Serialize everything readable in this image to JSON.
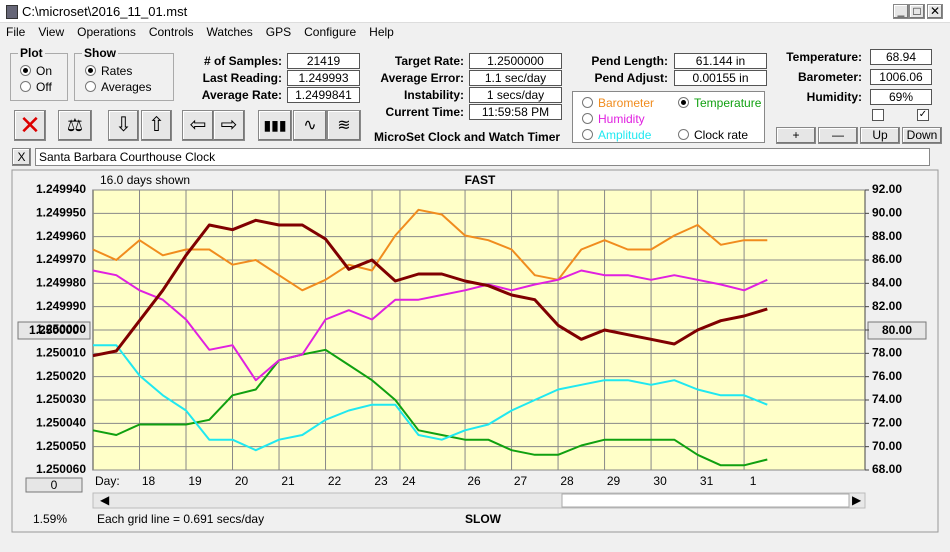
{
  "window": {
    "title": "C:\\microset\\2016_11_01.mst"
  },
  "menu": [
    "File",
    "View",
    "Operations",
    "Controls",
    "Watches",
    "GPS",
    "Configure",
    "Help"
  ],
  "plot_group": {
    "title": "Plot",
    "options": [
      "On",
      "Off"
    ]
  },
  "show_group": {
    "title": "Show",
    "options": [
      "Rates",
      "Averages"
    ]
  },
  "stats": [
    {
      "label": "# of Samples:",
      "value": "21419"
    },
    {
      "label": "Last Reading:",
      "value": "1.249993"
    },
    {
      "label": "Average Rate:",
      "value": "1.2499841"
    }
  ],
  "timing": [
    {
      "label": "Target Rate:",
      "value": "1.2500000"
    },
    {
      "label": "Average Error:",
      "value": "1.1 sec/day"
    },
    {
      "label": "Instability:",
      "value": "1 secs/day"
    },
    {
      "label": "Current Time:",
      "value": "11:59:58 PM"
    }
  ],
  "app_name": "MicroSet Clock and Watch Timer",
  "pendulum": [
    {
      "label": "Pend Length:",
      "value": "61.144 in"
    },
    {
      "label": "Pend Adjust:",
      "value": "0.00155 in"
    }
  ],
  "sensors": [
    {
      "label": "Temperature:",
      "value": "68.94"
    },
    {
      "label": "Barometer:",
      "value": "1006.06"
    },
    {
      "label": "Humidity:",
      "value": "69%"
    }
  ],
  "scale_buttons": [
    "+",
    "—",
    "Up",
    "Down"
  ],
  "clock_close": "X",
  "clock_name": "Santa Barbara Courthouse Clock",
  "chart": {
    "type": "line",
    "days_shown": "16.0 days shown",
    "top_label": "FAST",
    "bottom_label": "SLOW",
    "x_axis_label": "Day:",
    "grid_note": "Each grid line = 0.691 secs/day",
    "percent": "1.59%",
    "left_button": "1.250000",
    "right_button": "80.00",
    "scroll_button": "0",
    "xlim": [
      0,
      16.6
    ],
    "xticks": [
      {
        "value": 1,
        "label": "18"
      },
      {
        "value": 2,
        "label": "19"
      },
      {
        "value": 3,
        "label": "20"
      },
      {
        "value": 4,
        "label": "21"
      },
      {
        "value": 5,
        "label": "22"
      },
      {
        "value": 6,
        "label": "23"
      },
      {
        "value": 6.6,
        "label": "24"
      },
      {
        "value": 8,
        "label": "26"
      },
      {
        "value": 9,
        "label": "27"
      },
      {
        "value": 10,
        "label": "28"
      },
      {
        "value": 11,
        "label": "29"
      },
      {
        "value": 12,
        "label": "30"
      },
      {
        "value": 13,
        "label": "31"
      },
      {
        "value": 14,
        "label": "1"
      }
    ],
    "ylim": [
      1.24994,
      1.25006
    ],
    "yticks": [
      {
        "value": 1.24994,
        "label": "1.249940"
      },
      {
        "value": 1.24995,
        "label": "1.249950"
      },
      {
        "value": 1.24996,
        "label": "1.249960"
      },
      {
        "value": 1.24997,
        "label": "1.249970"
      },
      {
        "value": 1.24998,
        "label": "1.249980"
      },
      {
        "value": 1.24999,
        "label": "1.249990"
      },
      {
        "value": 1.25,
        "label": "1.250000"
      },
      {
        "value": 1.25001,
        "label": "1.250010"
      },
      {
        "value": 1.25002,
        "label": "1.250020"
      },
      {
        "value": 1.25003,
        "label": "1.250030"
      },
      {
        "value": 1.25004,
        "label": "1.250040"
      },
      {
        "value": 1.25005,
        "label": "1.250050"
      },
      {
        "value": 1.25006,
        "label": "1.250060"
      }
    ],
    "y2lim": [
      92,
      68
    ],
    "y2ticks": [
      {
        "value": 92,
        "label": "92.00"
      },
      {
        "value": 90,
        "label": "90.00"
      },
      {
        "value": 88,
        "label": "88.00"
      },
      {
        "value": 86,
        "label": "86.00"
      },
      {
        "value": 84,
        "label": "84.00"
      },
      {
        "value": 82,
        "label": "82.00"
      },
      {
        "value": 80,
        "label": "80.00"
      },
      {
        "value": 78,
        "label": "78.00"
      },
      {
        "value": 76,
        "label": "76.00"
      },
      {
        "value": 74,
        "label": "74.00"
      },
      {
        "value": 72,
        "label": "72.00"
      },
      {
        "value": 70,
        "label": "70.00"
      },
      {
        "value": 68,
        "label": "68.00"
      }
    ],
    "grid": true,
    "x": [
      0,
      0.5,
      1,
      1.5,
      2,
      2.5,
      3,
      3.5,
      4,
      4.5,
      5,
      5.5,
      6,
      6.5,
      7,
      7.5,
      8,
      8.5,
      9,
      9.5,
      10,
      10.5,
      11,
      11.5,
      12,
      12.5,
      13,
      13.5,
      14,
      14.5
    ],
    "series": [
      {
        "name": "Barometer",
        "color": "#f08c1e",
        "axis": "y2",
        "values": [
          86.9,
          86.0,
          87.7,
          86.4,
          86.9,
          86.9,
          85.6,
          86.0,
          84.7,
          83.4,
          84.3,
          85.6,
          85.1,
          88.1,
          90.3,
          89.9,
          88.1,
          87.7,
          86.9,
          84.7,
          84.3,
          86.9,
          87.7,
          86.9,
          86.9,
          88.1,
          89.0,
          87.3,
          87.7,
          87.7
        ]
      },
      {
        "name": "Temperature",
        "color": "#10a010",
        "axis": "y2",
        "values": [
          71.4,
          71.0,
          71.9,
          71.9,
          71.9,
          72.3,
          74.4,
          74.9,
          77.4,
          77.9,
          78.3,
          77.0,
          75.7,
          74.0,
          71.4,
          71.0,
          70.6,
          70.6,
          69.7,
          69.3,
          69.3,
          70.1,
          70.6,
          70.6,
          70.6,
          70.6,
          69.3,
          68.4,
          68.4,
          68.9
        ]
      },
      {
        "name": "Humidity",
        "color": "#e020e0",
        "axis": "y2",
        "values": [
          85.1,
          84.7,
          83.4,
          82.6,
          80.9,
          78.3,
          78.7,
          75.7,
          77.4,
          77.9,
          80.9,
          81.7,
          80.9,
          82.6,
          82.6,
          83.0,
          83.4,
          83.9,
          83.4,
          83.9,
          84.3,
          85.1,
          84.7,
          84.7,
          84.3,
          84.7,
          84.3,
          83.9,
          83.4,
          84.3
        ]
      },
      {
        "name": "Amplitude",
        "color": "#20e8f0",
        "axis": "y2",
        "values": [
          78.7,
          78.7,
          76.1,
          74.4,
          73.1,
          70.6,
          70.6,
          69.7,
          70.6,
          71.0,
          72.3,
          73.1,
          73.6,
          73.6,
          71.0,
          70.6,
          71.4,
          71.9,
          73.1,
          74.0,
          74.9,
          75.3,
          75.7,
          75.7,
          75.3,
          75.7,
          74.9,
          74.4,
          74.4,
          73.6
        ]
      },
      {
        "name": "Clock rate",
        "color": "#800000",
        "axis": "y",
        "values": [
          1.250011,
          1.250009,
          1.249996,
          1.249983,
          1.249968,
          1.249955,
          1.249957,
          1.249953,
          1.249955,
          1.249955,
          1.249961,
          1.249974,
          1.24997,
          1.249979,
          1.249976,
          1.249976,
          1.249979,
          1.249981,
          1.249985,
          1.249987,
          1.249998,
          1.250004,
          1.25,
          1.250002,
          1.250004,
          1.250006,
          1.25,
          1.249996,
          1.249994,
          1.249991
        ]
      }
    ]
  }
}
